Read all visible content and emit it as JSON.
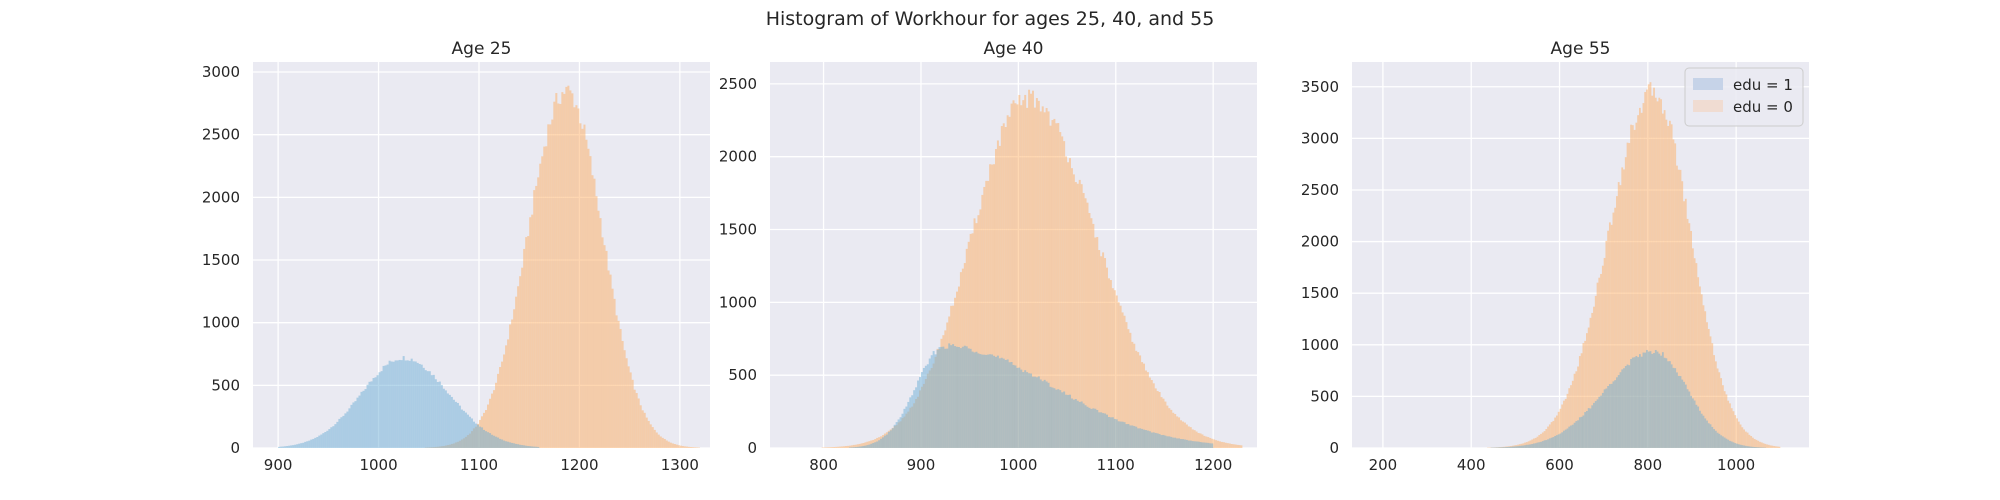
{
  "figure": {
    "suptitle": "Histogram of Workhour for ages 25, 40, and 55"
  },
  "colors": {
    "background": "#eaeaf2",
    "grid": "#ffffff",
    "edu1": "#6baed6",
    "edu0": "#fdae61",
    "edu1_legend": "#c6d3e8",
    "edu0_legend": "#f0dcd2"
  },
  "chart_data": [
    {
      "type": "histogram",
      "title": "Age 25",
      "xlim": [
        875,
        1330
      ],
      "ylim": [
        0,
        3080
      ],
      "xticks": [
        900,
        1000,
        1100,
        1200,
        1300
      ],
      "yticks": [
        0,
        500,
        1000,
        1500,
        2000,
        2500,
        3000
      ],
      "grid": true,
      "legend": null,
      "bin_width": 2,
      "series": [
        {
          "name": "edu = 1",
          "color_key": "edu1",
          "mean": 1025,
          "peak": 720,
          "sd_left": 42,
          "sd_right": 45,
          "range": [
            900,
            1160
          ]
        },
        {
          "name": "edu = 0",
          "color_key": "edu0",
          "mean": 1187,
          "peak": 2850,
          "sd_left": 38,
          "sd_right": 36,
          "range": [
            1020,
            1320
          ]
        }
      ]
    },
    {
      "type": "histogram",
      "title": "Age 40",
      "xlim": [
        745,
        1245
      ],
      "ylim": [
        0,
        2650
      ],
      "xticks": [
        800,
        900,
        1000,
        1100,
        1200
      ],
      "yticks": [
        0,
        500,
        1000,
        1500,
        2000,
        2500
      ],
      "grid": true,
      "legend": null,
      "bin_width": 2,
      "series": [
        {
          "name": "edu = 1",
          "color_key": "edu1",
          "mean": 925,
          "peak": 700,
          "sd_left": 30,
          "sd_right": 110,
          "range": [
            760,
            1200
          ]
        },
        {
          "name": "edu = 0",
          "color_key": "edu0",
          "mean": 1010,
          "peak": 2400,
          "sd_left": 58,
          "sd_right": 70,
          "range": [
            780,
            1230
          ]
        }
      ]
    },
    {
      "type": "histogram",
      "title": "Age 55",
      "xlim": [
        130,
        1165
      ],
      "ylim": [
        0,
        3740
      ],
      "xticks": [
        200,
        400,
        600,
        800,
        1000
      ],
      "yticks": [
        0,
        500,
        1000,
        1500,
        2000,
        2500,
        3000,
        3500
      ],
      "grid": true,
      "legend": "upper right",
      "bin_width": 4,
      "series": [
        {
          "name": "edu = 1",
          "color_key": "edu1",
          "mean": 815,
          "peak": 940,
          "sd_left": 110,
          "sd_right": 75,
          "range": [
            400,
            1100
          ]
        },
        {
          "name": "edu = 0",
          "color_key": "edu0",
          "mean": 812,
          "peak": 3450,
          "sd_left": 100,
          "sd_right": 85,
          "range": [
            400,
            1100
          ]
        }
      ]
    }
  ]
}
